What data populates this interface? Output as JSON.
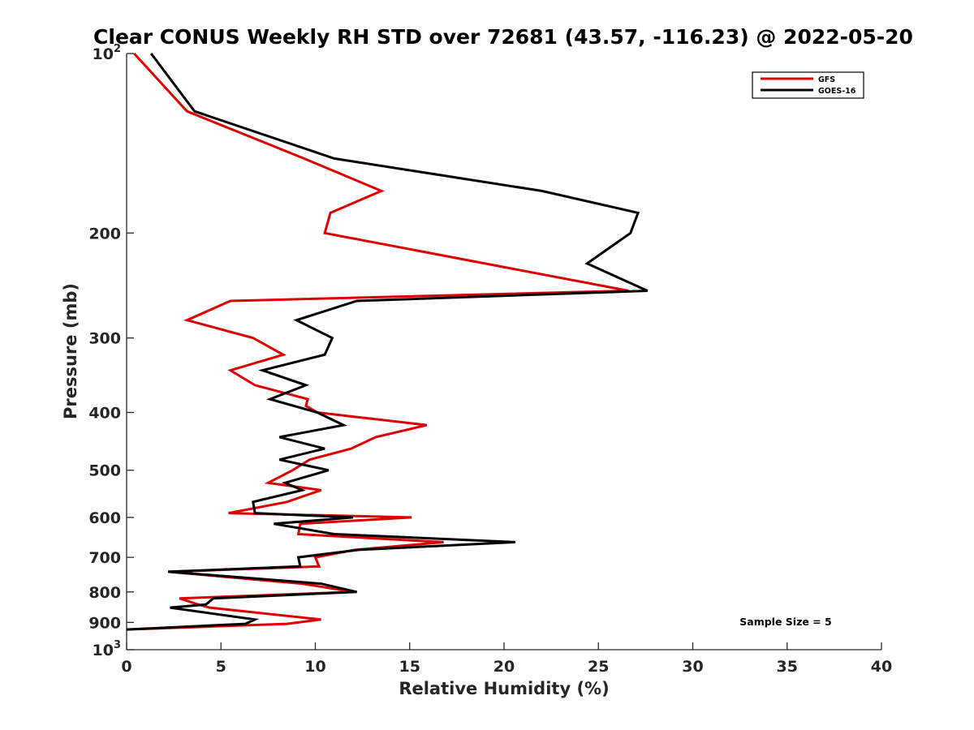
{
  "chart_data": {
    "type": "line",
    "title": "Clear CONUS Weekly RH STD over 72681 (43.57, -116.23) @ 2022-05-20",
    "xlabel": "Relative Humidity (%)",
    "ylabel": "Pressure (mb)",
    "xlim": [
      0,
      40
    ],
    "ylim": [
      100,
      1000
    ],
    "yscale": "log",
    "y_reversed": true,
    "grid": false,
    "legend_position": "top-right",
    "annotation": "Sample Size = 5",
    "x_ticks": [
      "0",
      "5",
      "10",
      "15",
      "20",
      "25",
      "30",
      "35",
      "40"
    ],
    "x_tick_values": [
      0,
      5,
      10,
      15,
      20,
      25,
      30,
      35,
      40
    ],
    "y_ticks": [
      {
        "value": 100,
        "base": "10",
        "sup": "2"
      },
      {
        "value": 200,
        "base": "200",
        "sup": ""
      },
      {
        "value": 300,
        "base": "300",
        "sup": ""
      },
      {
        "value": 400,
        "base": "400",
        "sup": ""
      },
      {
        "value": 500,
        "base": "500",
        "sup": ""
      },
      {
        "value": 600,
        "base": "600",
        "sup": ""
      },
      {
        "value": 700,
        "base": "700",
        "sup": ""
      },
      {
        "value": 800,
        "base": "800",
        "sup": ""
      },
      {
        "value": 900,
        "base": "900",
        "sup": ""
      },
      {
        "value": 1000,
        "base": "10",
        "sup": "3"
      }
    ],
    "series": [
      {
        "name": "GFS",
        "color": "#dd0000",
        "points": [
          [
            0.4,
            100
          ],
          [
            3.2,
            125
          ],
          [
            9.4,
            150
          ],
          [
            13.5,
            170
          ],
          [
            10.8,
            185
          ],
          [
            10.5,
            200
          ],
          [
            26.6,
            250
          ],
          [
            5.5,
            260
          ],
          [
            3.2,
            280
          ],
          [
            6.7,
            300
          ],
          [
            8.3,
            320
          ],
          [
            5.5,
            340
          ],
          [
            6.8,
            360
          ],
          [
            9.6,
            380
          ],
          [
            9.5,
            390
          ],
          [
            10.1,
            400
          ],
          [
            15.9,
            420
          ],
          [
            13.2,
            440
          ],
          [
            11.9,
            460
          ],
          [
            9.7,
            480
          ],
          [
            8.8,
            500
          ],
          [
            7.5,
            525
          ],
          [
            10.3,
            540
          ],
          [
            8.5,
            565
          ],
          [
            5.4,
            590
          ],
          [
            15.1,
            600
          ],
          [
            9.2,
            615
          ],
          [
            9.1,
            640
          ],
          [
            16.8,
            660
          ],
          [
            12.1,
            680
          ],
          [
            10.0,
            700
          ],
          [
            10.2,
            725
          ],
          [
            2.2,
            740
          ],
          [
            9.3,
            775
          ],
          [
            10.4,
            785
          ],
          [
            12.0,
            800
          ],
          [
            2.8,
            820
          ],
          [
            3.8,
            840
          ],
          [
            4.4,
            850
          ],
          [
            10.3,
            890
          ],
          [
            8.5,
            905
          ],
          [
            0,
            925
          ]
        ]
      },
      {
        "name": "GOES-16",
        "color": "#000000",
        "points": [
          [
            1.3,
            100
          ],
          [
            3.6,
            125
          ],
          [
            11.0,
            150
          ],
          [
            22.0,
            170
          ],
          [
            27.1,
            185
          ],
          [
            26.7,
            200
          ],
          [
            24.4,
            225
          ],
          [
            27.6,
            250
          ],
          [
            12.2,
            260
          ],
          [
            9.0,
            280
          ],
          [
            10.9,
            300
          ],
          [
            10.5,
            320
          ],
          [
            7.2,
            340
          ],
          [
            9.5,
            360
          ],
          [
            7.6,
            380
          ],
          [
            10.1,
            400
          ],
          [
            11.5,
            420
          ],
          [
            8.1,
            440
          ],
          [
            10.5,
            460
          ],
          [
            8.1,
            480
          ],
          [
            10.7,
            500
          ],
          [
            8.4,
            525
          ],
          [
            9.3,
            540
          ],
          [
            6.7,
            565
          ],
          [
            6.8,
            590
          ],
          [
            12.0,
            600
          ],
          [
            7.8,
            615
          ],
          [
            11.0,
            640
          ],
          [
            20.6,
            660
          ],
          [
            12.3,
            680
          ],
          [
            9.1,
            700
          ],
          [
            9.2,
            725
          ],
          [
            2.2,
            740
          ],
          [
            10.3,
            775
          ],
          [
            12.2,
            800
          ],
          [
            4.6,
            820
          ],
          [
            4.2,
            840
          ],
          [
            2.3,
            850
          ],
          [
            6.8,
            890
          ],
          [
            6.3,
            905
          ],
          [
            0,
            925
          ]
        ]
      }
    ]
  }
}
